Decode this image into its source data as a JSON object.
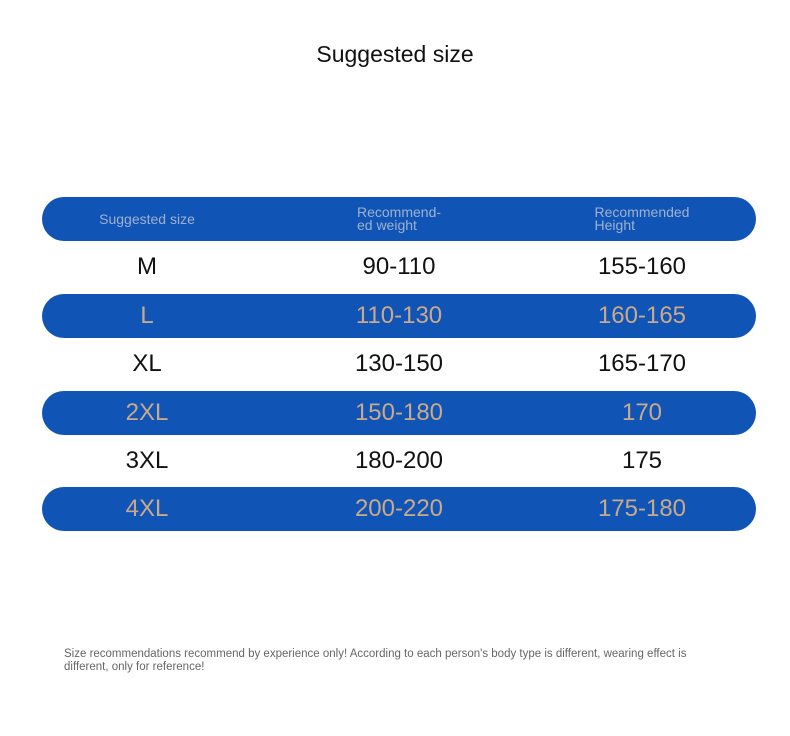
{
  "title": "Suggested size",
  "header": {
    "size": "Suggested size",
    "weight": "Recommend-\ned weight",
    "height": "Recommended\nHeight"
  },
  "rows": [
    {
      "size": "M",
      "weight": "90-110",
      "height": "155-160"
    },
    {
      "size": "L",
      "weight": "110-130",
      "height": "160-165"
    },
    {
      "size": "XL",
      "weight": "130-150",
      "height": "165-170"
    },
    {
      "size": "2XL",
      "weight": "150-180",
      "height": "170"
    },
    {
      "size": "3XL",
      "weight": "180-200",
      "height": "175"
    },
    {
      "size": "4XL",
      "weight": "200-220",
      "height": "175-180"
    }
  ],
  "note": "Size recommendations recommend by experience only! According to each person's body type is different, wearing effect is different, only for reference!",
  "colors": {
    "band": "#1055b5",
    "band_text": "#c9a98a",
    "header_text": "#9fb0cf"
  }
}
